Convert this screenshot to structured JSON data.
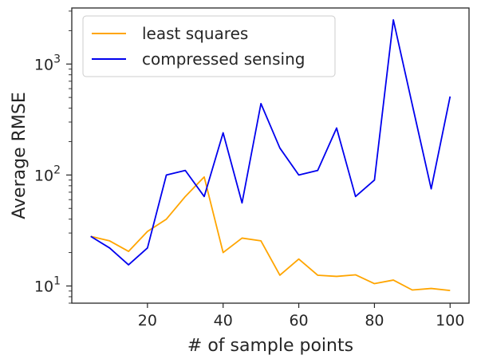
{
  "chart_data": {
    "type": "line",
    "title": "",
    "xlabel": "# of sample points",
    "ylabel": "Average RMSE",
    "x": [
      5,
      10,
      15,
      20,
      25,
      30,
      35,
      40,
      45,
      50,
      55,
      60,
      65,
      70,
      75,
      80,
      85,
      90,
      95,
      100
    ],
    "xlim": [
      0,
      105
    ],
    "ylim": [
      7,
      3200
    ],
    "yscale": "log",
    "xticks": [
      20,
      40,
      60,
      80,
      100
    ],
    "xtick_labels": [
      "20",
      "40",
      "60",
      "80",
      "100"
    ],
    "yticks_major": [
      10,
      100,
      1000
    ],
    "ytick_labels": [
      {
        "base": "10",
        "exp": "1"
      },
      {
        "base": "10",
        "exp": "2"
      },
      {
        "base": "10",
        "exp": "3"
      }
    ],
    "grid": false,
    "legend_position": "upper-left",
    "series": [
      {
        "name": "least squares",
        "color": "#FFA500",
        "values": [
          28,
          25.5,
          20.5,
          31,
          40,
          64,
          96,
          20,
          27,
          25.5,
          12.5,
          17.5,
          12.5,
          12.2,
          12.6,
          10.5,
          11.3,
          9.2,
          9.5,
          9.1
        ]
      },
      {
        "name": "compressed sensing",
        "color": "#0000EE",
        "values": [
          28,
          22,
          15.5,
          22,
          100,
          110,
          64,
          240,
          56,
          440,
          175,
          100,
          110,
          265,
          64,
          90,
          2500,
          430,
          75,
          510
        ]
      }
    ]
  }
}
